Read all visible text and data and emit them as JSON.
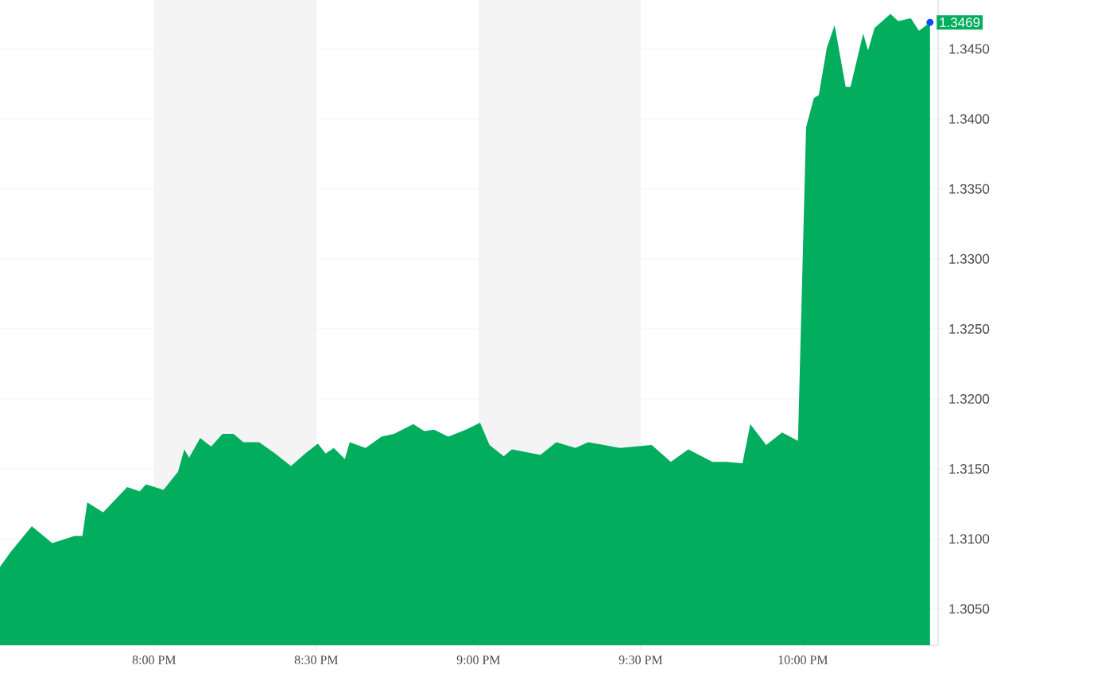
{
  "chart_data": {
    "type": "area",
    "x": [
      19.525,
      19.559,
      19.623,
      19.686,
      19.755,
      19.779,
      19.794,
      19.843,
      19.917,
      19.956,
      19.975,
      20.029,
      20.074,
      20.093,
      20.108,
      20.142,
      20.176,
      20.211,
      20.245,
      20.275,
      20.324,
      20.373,
      20.422,
      20.466,
      20.505,
      20.529,
      20.554,
      20.588,
      20.603,
      20.652,
      20.701,
      20.74,
      20.799,
      20.833,
      20.863,
      20.907,
      20.961,
      21.005,
      21.034,
      21.078,
      21.103,
      21.191,
      21.24,
      21.299,
      21.338,
      21.436,
      21.534,
      21.593,
      21.647,
      21.721,
      21.765,
      21.814,
      21.838,
      21.887,
      21.936,
      21.985,
      22.01,
      22.034,
      22.049,
      22.074,
      22.098,
      22.132,
      22.147,
      22.186,
      22.201,
      22.221,
      22.27,
      22.294,
      22.333,
      22.358,
      22.392
    ],
    "series": [
      {
        "color": "#02ad5e",
        "values": [
          1.308,
          1.3091,
          1.3109,
          1.3097,
          1.3102,
          1.3102,
          1.3126,
          1.3119,
          1.3137,
          1.3134,
          1.3139,
          1.3135,
          1.3148,
          1.3164,
          1.3158,
          1.3172,
          1.3166,
          1.3175,
          1.3175,
          1.3169,
          1.3169,
          1.3161,
          1.3152,
          1.3161,
          1.3168,
          1.3161,
          1.3165,
          1.3157,
          1.3169,
          1.3165,
          1.3173,
          1.3175,
          1.3182,
          1.3177,
          1.3178,
          1.3173,
          1.3178,
          1.3183,
          1.3167,
          1.3159,
          1.3164,
          1.316,
          1.3169,
          1.3165,
          1.3169,
          1.3165,
          1.3167,
          1.3155,
          1.3164,
          1.3155,
          1.3155,
          1.3154,
          1.3182,
          1.3167,
          1.3176,
          1.317,
          1.3394,
          1.3415,
          1.3417,
          1.3451,
          1.3467,
          1.3423,
          1.3423,
          1.3461,
          1.3449,
          1.3465,
          1.3475,
          1.347,
          1.3472,
          1.3463,
          1.3469
        ]
      }
    ],
    "xlim": [
      19.525,
      22.417
    ],
    "xticks": [
      {
        "value": 20,
        "label": "8:00 PM"
      },
      {
        "value": 20.5,
        "label": "8:30 PM"
      },
      {
        "value": 21,
        "label": "9:00 PM"
      },
      {
        "value": 21.5,
        "label": "9:30 PM"
      },
      {
        "value": 22,
        "label": "10:00 PM"
      }
    ],
    "ylim": [
      1.3024,
      1.3485
    ],
    "yticks": [
      {
        "value": 1.305,
        "label": "1.3050"
      },
      {
        "value": 1.31,
        "label": "1.3100"
      },
      {
        "value": 1.315,
        "label": "1.3150"
      },
      {
        "value": 1.32,
        "label": "1.3200"
      },
      {
        "value": 1.325,
        "label": "1.3250"
      },
      {
        "value": 1.33,
        "label": "1.3300"
      },
      {
        "value": 1.335,
        "label": "1.3350"
      },
      {
        "value": 1.34,
        "label": "1.3400"
      },
      {
        "value": 1.345,
        "label": "1.3450"
      }
    ],
    "grid": "y",
    "bands": [
      {
        "axis": "x",
        "from": 20,
        "to": 20.5,
        "color": "#f4f4f4"
      },
      {
        "axis": "x",
        "from": 21,
        "to": 21.5,
        "color": "#f4f4f4"
      }
    ],
    "annotations": [
      {
        "text": "1.3469",
        "x": 22.392,
        "y": 1.3469
      }
    ]
  }
}
